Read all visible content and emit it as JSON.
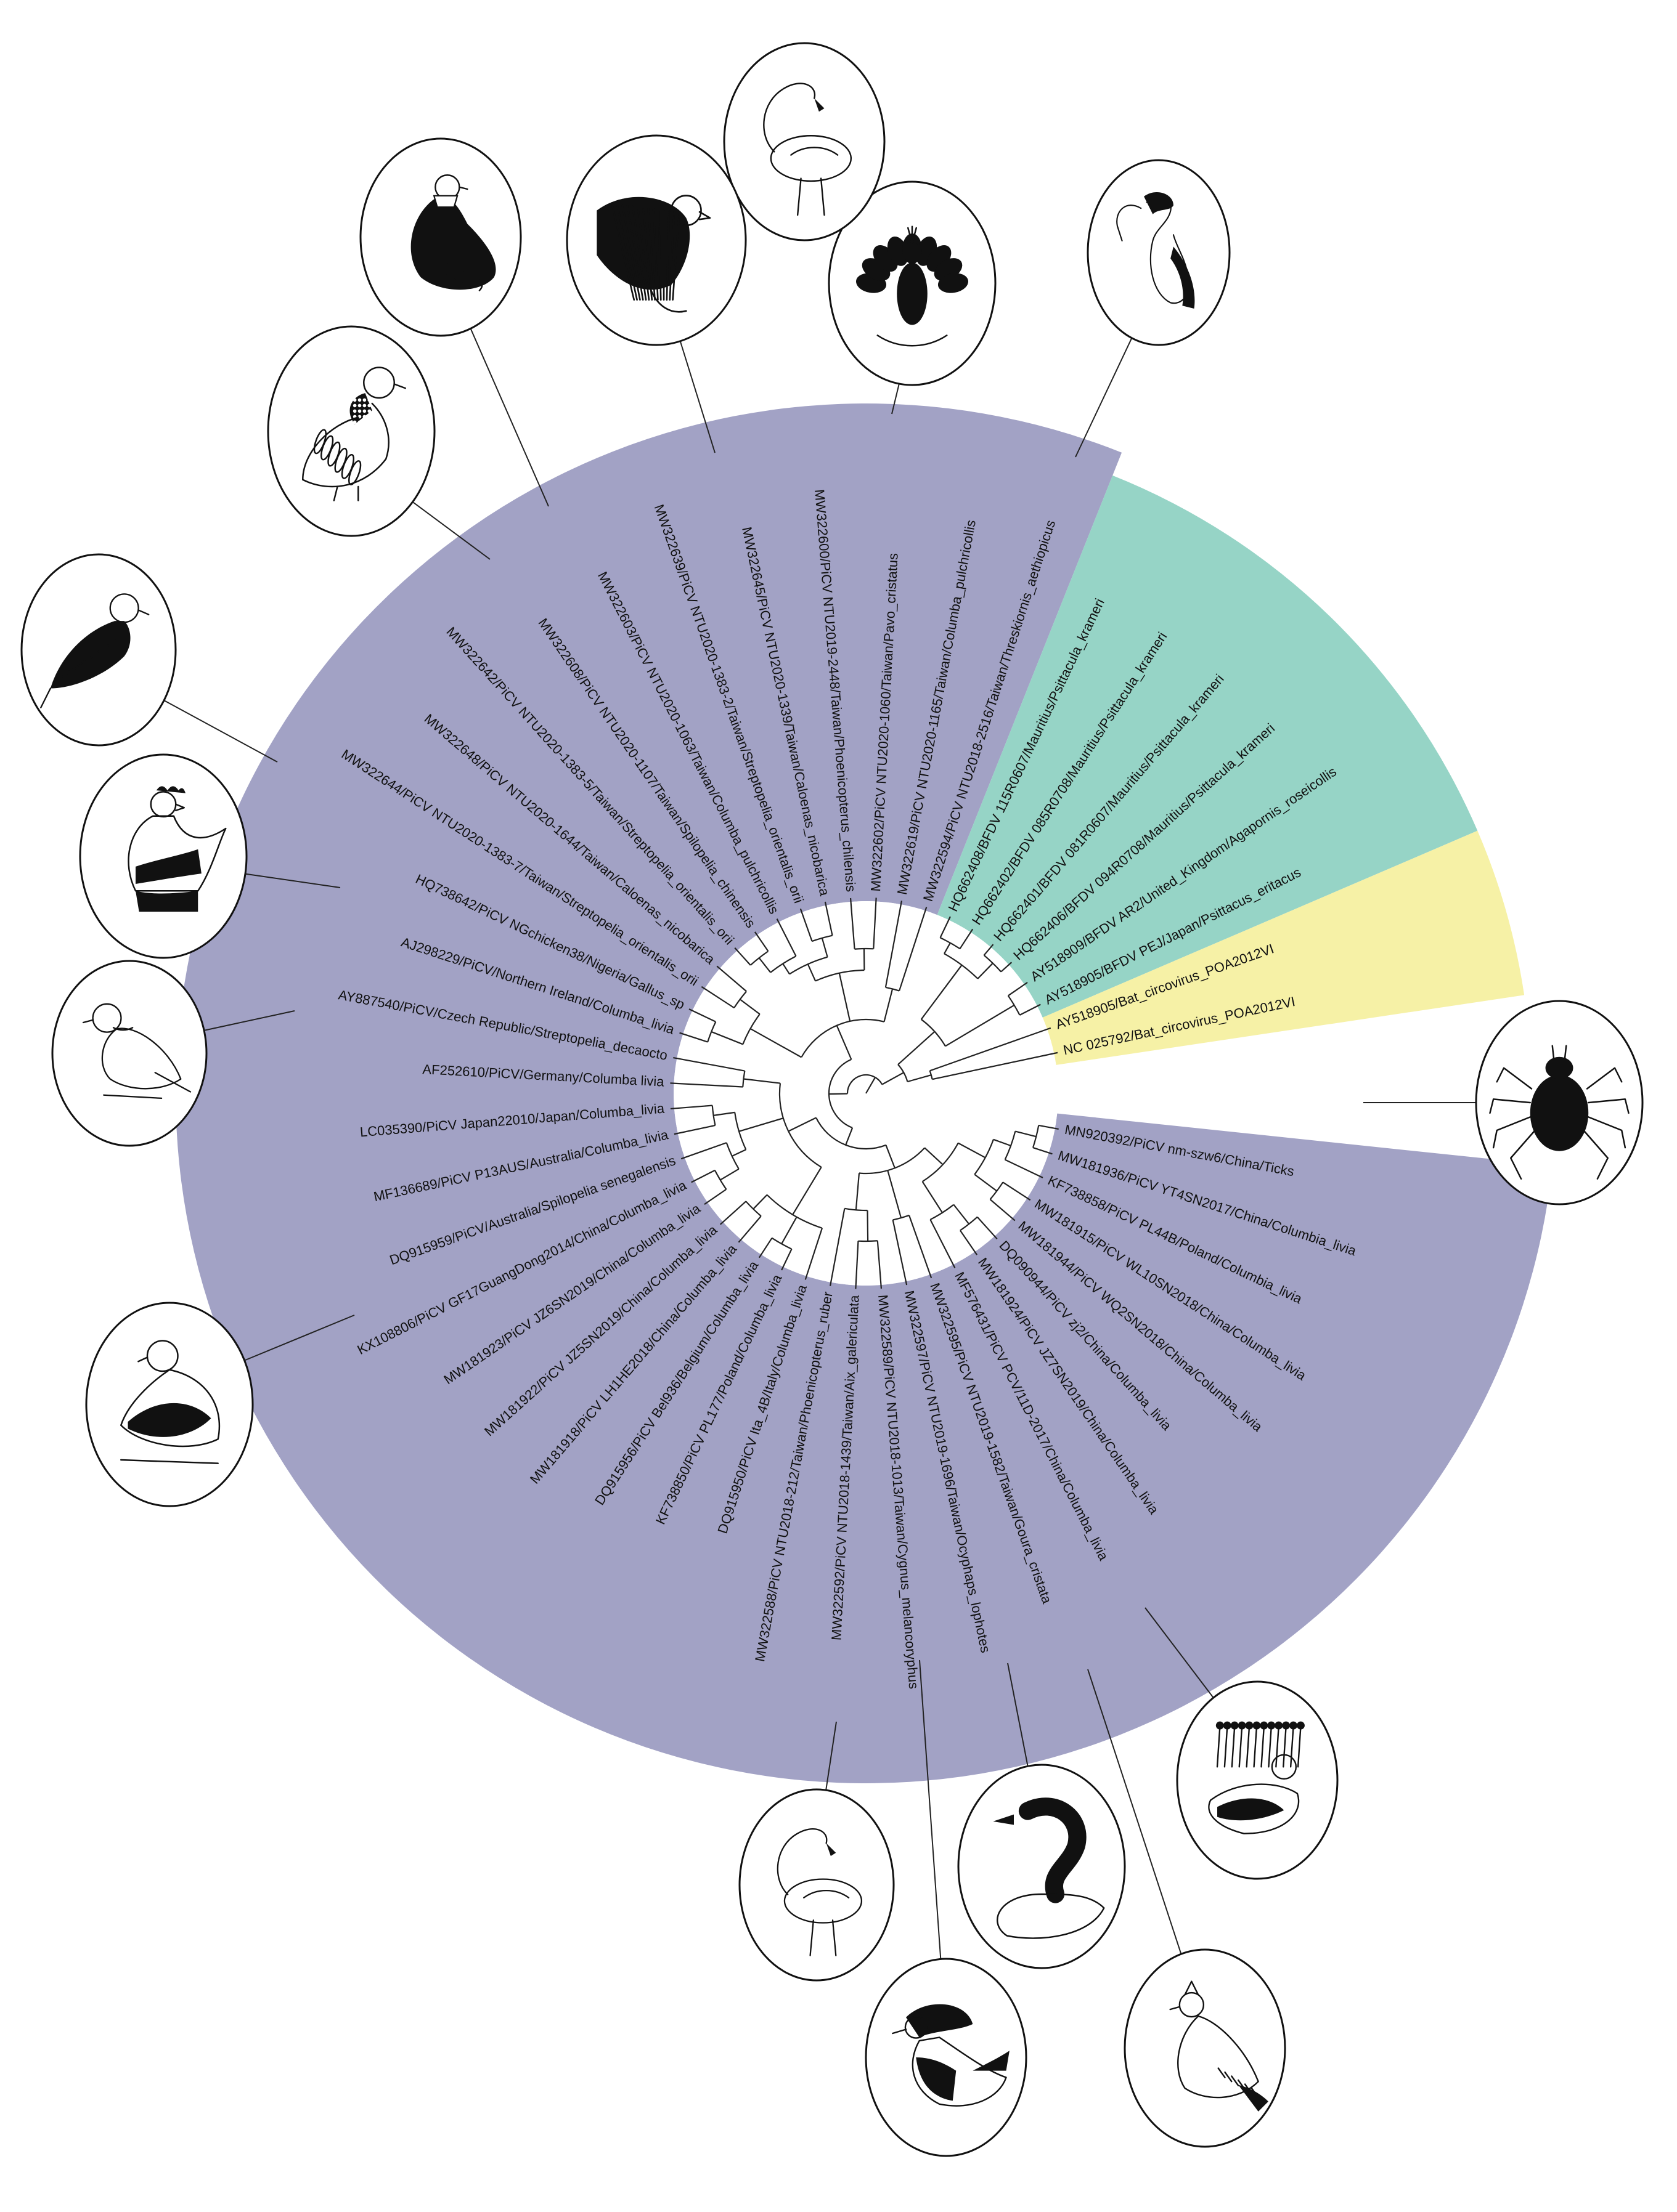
{
  "palette": {
    "picv_clade": "#A2A2C5",
    "bfdv_clade": "#96D4C6",
    "outgroup_clade": "#F6F1A6"
  },
  "taxa": [
    {
      "id": "t0",
      "label": "MW322594/PiCV NTU2018-2516/Taiwan/Threskiornis_aethiopicus",
      "angle": 288,
      "clade": "picv"
    },
    {
      "id": "t1",
      "label": "MW322619/PiCV NTU2020-1165/Taiwan/Columba_pulchricollis",
      "angle": 280.5,
      "clade": "picv"
    },
    {
      "id": "t2",
      "label": "MW322602/PiCV NTU2020-1060/Taiwan/Pavo_cristatus",
      "angle": 273,
      "clade": "picv"
    },
    {
      "id": "t3",
      "label": "MW322600/PiCV NTU2019-2448/Taiwan/Phoenicopterus_chilensis",
      "angle": 265.5,
      "clade": "picv"
    },
    {
      "id": "t4",
      "label": "MW322645/PiCV NTU2020-1339/Taiwan/Caloenas_nicobarica",
      "angle": 258,
      "clade": "picv"
    },
    {
      "id": "t5",
      "label": "MW322639/PiCV NTU2020-1383-2/Taiwan/Streptopelia_orientalis_orii",
      "angle": 250.5,
      "clade": "picv"
    },
    {
      "id": "t6",
      "label": "MW322603/PiCV NTU2020-1063/Taiwan/Columba_pulchricollis",
      "angle": 243,
      "clade": "picv"
    },
    {
      "id": "t7",
      "label": "MW322608/PiCV NTU2020-1107/Taiwan/Spilopelia_chinensis",
      "angle": 235.5,
      "clade": "picv"
    },
    {
      "id": "t8",
      "label": "MW322642/PiCV NTU2020-1383-5/Taiwan/Streptopelia_orientalis_orii",
      "angle": 228,
      "clade": "picv"
    },
    {
      "id": "t9",
      "label": "MW322648/PiCV NTU2020-1644/Taiwan/Caloenas_nicobarica",
      "angle": 220.5,
      "clade": "picv"
    },
    {
      "id": "t10",
      "label": "MW322644/PiCV NTU2020-1383-7/Taiwan/Streptopelia_orientalis_orii",
      "angle": 213,
      "clade": "picv"
    },
    {
      "id": "t11",
      "label": "HQ738642/PiCV NGchicken38/Nigeria/Gallus_sp",
      "angle": 205.5,
      "clade": "picv"
    },
    {
      "id": "t12",
      "label": "AJ298229/PiCV/Northern Ireland/Columba_livia",
      "angle": 198,
      "clade": "picv"
    },
    {
      "id": "t13",
      "label": "AY887540/PiCV/Czech Republic/Streptopelia_decaocto",
      "angle": 190.5,
      "clade": "picv"
    },
    {
      "id": "t14",
      "label": "AF252610/PiCV/Germany/Columba livia",
      "angle": 183,
      "clade": "picv"
    },
    {
      "id": "t15",
      "label": "LC035390/PiCV Japan22010/Japan/Columba_livia",
      "angle": 175.5,
      "clade": "picv"
    },
    {
      "id": "t16",
      "label": "MF136689/PiCV P13AUS/Australia/Columba_livia",
      "angle": 168,
      "clade": "picv"
    },
    {
      "id": "t17",
      "label": "DQ915959/PiCV/Australia/Spilopelia senegalensis",
      "angle": 160.5,
      "clade": "picv"
    },
    {
      "id": "t18",
      "label": "KX108806/PiCV GF17GuangDong2014/China/Columba_livia",
      "angle": 153,
      "clade": "picv"
    },
    {
      "id": "t19",
      "label": "MW181923/PiCV JZ6SN2019/China/Columba_livia",
      "angle": 145.5,
      "clade": "picv"
    },
    {
      "id": "t20",
      "label": "MW181922/PiCV JZ5SN2019/China/Columba_livia",
      "angle": 138,
      "clade": "picv"
    },
    {
      "id": "t21",
      "label": "MW181918/PiCV LH1HE2018/China/Columba_livia",
      "angle": 130.5,
      "clade": "picv"
    },
    {
      "id": "t22",
      "label": "DQ915956/PiCV Bel936/Belgium/Columba_livia",
      "angle": 123,
      "clade": "picv"
    },
    {
      "id": "t23",
      "label": "KF738850/PiCV PL177/Poland/Columba_livia",
      "angle": 115.5,
      "clade": "picv"
    },
    {
      "id": "t24",
      "label": "DQ915950/PiCV Ita_4B/Italy/Columba_livia",
      "angle": 108,
      "clade": "picv"
    },
    {
      "id": "t25",
      "label": "MW322588/PiCV NTU2018-212/Taiwan/Phoenicopterus_ruber",
      "angle": 100.5,
      "clade": "picv"
    },
    {
      "id": "t26",
      "label": "MW322592/PiCV NTU2018-1439/Taiwan/Aix_galericulata",
      "angle": 93,
      "clade": "picv"
    },
    {
      "id": "t27",
      "label": "MW322589/PiCV NTU2018-1013/Taiwan/Cygnus_melancoryphus",
      "angle": 85.5,
      "clade": "picv"
    },
    {
      "id": "t28",
      "label": "MW322597/PiCV NTU2019-1696/Taiwan/Ocyphaps_lophotes",
      "angle": 78,
      "clade": "picv"
    },
    {
      "id": "t29",
      "label": "MW322595/PiCV NTU2019-1582/Taiwan/Goura_cristata",
      "angle": 70.5,
      "clade": "picv"
    },
    {
      "id": "t30",
      "label": "MF576431/PiCV PCV/11D-2017/China/Columba_livia",
      "angle": 63,
      "clade": "picv"
    },
    {
      "id": "t31",
      "label": "MW181924/PiCV JZ7SN2019/China/Columba_livia",
      "angle": 55.5,
      "clade": "picv"
    },
    {
      "id": "t32",
      "label": "DQ090944/PiCV zj2/China/Columba_livia",
      "angle": 48,
      "clade": "picv"
    },
    {
      "id": "t33",
      "label": "MW181944/PiCV WQ2SN2018/China/Columba_livia",
      "angle": 40.5,
      "clade": "picv"
    },
    {
      "id": "t34",
      "label": "MW181915/PiCV WL10SN2018/China/Columba_livia",
      "angle": 33,
      "clade": "picv"
    },
    {
      "id": "t35",
      "label": "KF738858/PiCV PL44B/Poland/Columbia_livia",
      "angle": 25.5,
      "clade": "picv"
    },
    {
      "id": "t36",
      "label": "MW181936/PiCV YT4SN2017/China/Columbia_livia",
      "angle": 18,
      "clade": "picv"
    },
    {
      "id": "t37",
      "label": "MN920392/PiCV nm-szw6/China/Ticks",
      "angle": 10.5,
      "clade": "picv"
    },
    {
      "id": "t38",
      "label": "HQ662408/BFDV 115R0607/Mauritius/Psittacula_krameri",
      "angle": 295.5,
      "clade": "bfdv"
    },
    {
      "id": "t39",
      "label": "HQ662402/BFDV 085R0708/Mauritius/Psittacula_krameri",
      "angle": 303,
      "clade": "bfdv"
    },
    {
      "id": "t40",
      "label": "HQ662401/BFDV 081R0607/Mauritius/Psittacula_krameri",
      "angle": 310.5,
      "clade": "bfdv"
    },
    {
      "id": "t41",
      "label": "HQ662406/BFDV 094R0708/Mauritius/Psittacula_krameri",
      "angle": 318,
      "clade": "bfdv"
    },
    {
      "id": "t42",
      "label": "AY518909/BFDV AR2/United_Kingdom/Agapornis_roseicollis",
      "angle": 325.5,
      "clade": "bfdv"
    },
    {
      "id": "t43",
      "label": "AY518905/BFDV PEJ/Japan/Psittacus_eritacus",
      "angle": 333,
      "clade": "bfdv"
    },
    {
      "id": "t44",
      "label": "AY518905/Bat_circovirus_POA2012VI",
      "angle": 340.5,
      "clade": "outgroup"
    },
    {
      "id": "t45",
      "label": "NC 025792/Bat_circovirus_POA2012VI",
      "angle": 348,
      "clade": "outgroup"
    }
  ],
  "vignettes": [
    {
      "id": "v-ibis",
      "host": "Threskiornis aethiopicus",
      "icon": "sacred-ibis-icon",
      "taxon": "t0"
    },
    {
      "id": "v-peacock",
      "host": "Pavo cristatus",
      "icon": "peacock-icon",
      "taxon": "t2"
    },
    {
      "id": "v-flamingo-top",
      "host": "Phoenicopterus chilensis",
      "icon": "flamingo-icon",
      "taxon": "t3"
    },
    {
      "id": "v-nicobar",
      "host": "Caloenas nicobarica",
      "icon": "nicobar-pigeon-icon",
      "taxon": "t4"
    },
    {
      "id": "v-pulchricollis",
      "host": "Columba pulchricollis",
      "icon": "ashy-wood-pigeon-icon",
      "taxon": "t6"
    },
    {
      "id": "v-spilopelia",
      "host": "Spilopelia chinensis",
      "icon": "spotted-dove-icon",
      "taxon": "t7"
    },
    {
      "id": "v-orientalis",
      "host": "Streptopelia orientalis orii",
      "icon": "oriental-turtle-dove-icon",
      "taxon": "t10"
    },
    {
      "id": "v-chicken",
      "host": "Gallus sp",
      "icon": "chicken-icon",
      "taxon": "t11"
    },
    {
      "id": "v-decaocto",
      "host": "Streptopelia decaocto",
      "icon": "collared-dove-icon",
      "taxon": "t13"
    },
    {
      "id": "v-senegalensis",
      "host": "Spilopelia senegalensis",
      "icon": "laughing-dove-icon",
      "taxon": "t17"
    },
    {
      "id": "v-flamingo-bottom",
      "host": "Phoenicopterus ruber",
      "icon": "flamingo-icon",
      "taxon": "t25"
    },
    {
      "id": "v-mandarin",
      "host": "Aix galericulata",
      "icon": "mandarin-duck-icon",
      "taxon": "t26"
    },
    {
      "id": "v-swan",
      "host": "Cygnus melancoryphus",
      "icon": "black-necked-swan-icon",
      "taxon": "t27"
    },
    {
      "id": "v-crested",
      "host": "Ocyphaps lophotes",
      "icon": "crested-pigeon-icon",
      "taxon": "t28"
    },
    {
      "id": "v-goura",
      "host": "Goura cristata",
      "icon": "crowned-pigeon-icon",
      "taxon": "t29"
    },
    {
      "id": "v-tick",
      "host": "Ticks",
      "icon": "tick-icon",
      "taxon": "t37"
    }
  ]
}
